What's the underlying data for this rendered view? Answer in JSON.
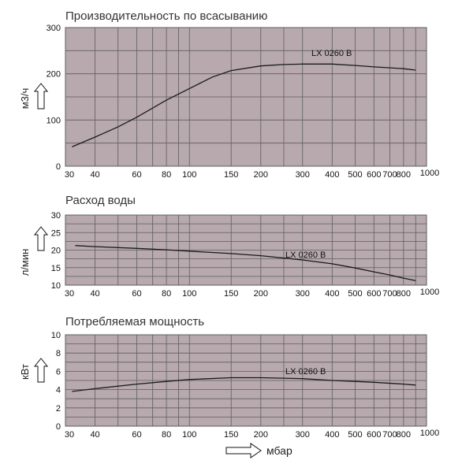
{
  "chart_data": [
    {
      "type": "line",
      "title": "Производительность по всасыванию",
      "xlabel": "",
      "ylabel": "м3/ч",
      "x_scale": "log",
      "xlim": [
        30,
        1000
      ],
      "ylim": [
        0,
        300
      ],
      "x_ticks": [
        30,
        40,
        60,
        80,
        100,
        150,
        200,
        300,
        400,
        500,
        600,
        700,
        800,
        1000
      ],
      "y_ticks": [
        0,
        100,
        200,
        300
      ],
      "grid": true,
      "series": [
        {
          "name": "LX 0260 B",
          "x": [
            32,
            40,
            50,
            60,
            80,
            100,
            125,
            150,
            200,
            250,
            300,
            400,
            500,
            600,
            800,
            900
          ],
          "y": [
            42,
            63,
            85,
            106,
            143,
            168,
            193,
            207,
            217,
            220,
            221,
            221,
            218,
            215,
            211,
            208
          ]
        }
      ]
    },
    {
      "type": "line",
      "title": "Расход воды",
      "xlabel": "",
      "ylabel": "л/мин",
      "x_scale": "log",
      "xlim": [
        30,
        1000
      ],
      "ylim": [
        10,
        30
      ],
      "x_ticks": [
        30,
        40,
        60,
        80,
        100,
        150,
        200,
        300,
        400,
        500,
        600,
        700,
        800,
        1000
      ],
      "y_ticks": [
        10,
        15,
        20,
        25,
        30
      ],
      "grid": true,
      "series": [
        {
          "name": "LX 0260 B",
          "x": [
            33,
            40,
            60,
            80,
            100,
            150,
            200,
            300,
            400,
            500,
            600,
            700,
            800,
            900
          ],
          "y": [
            21.3,
            21.0,
            20.5,
            20.1,
            19.7,
            19.0,
            18.4,
            17.2,
            16.1,
            14.9,
            13.8,
            12.9,
            12.0,
            11.3
          ]
        }
      ]
    },
    {
      "type": "line",
      "title": "Потребляемая мощность",
      "xlabel": "",
      "ylabel": "кВт",
      "x_scale": "log",
      "xlim": [
        30,
        1000
      ],
      "ylim": [
        0,
        10
      ],
      "x_ticks": [
        30,
        40,
        60,
        80,
        100,
        150,
        200,
        300,
        400,
        500,
        600,
        700,
        800,
        1000
      ],
      "y_ticks": [
        0,
        2,
        4,
        6,
        8,
        10
      ],
      "grid": true,
      "series": [
        {
          "name": "LX 0260 B",
          "x": [
            32,
            40,
            60,
            80,
            100,
            150,
            180,
            200,
            300,
            400,
            500,
            600,
            800,
            900
          ],
          "y": [
            3.8,
            4.1,
            4.6,
            4.9,
            5.1,
            5.3,
            5.3,
            5.3,
            5.2,
            5.0,
            4.9,
            4.8,
            4.6,
            4.5
          ]
        }
      ]
    }
  ],
  "x_unit": "мбар",
  "colors": {
    "plot_bg": "#b7a9ad",
    "grid": "#5e5e5e",
    "line": "#1a1a1a",
    "arrow": "#111111"
  }
}
